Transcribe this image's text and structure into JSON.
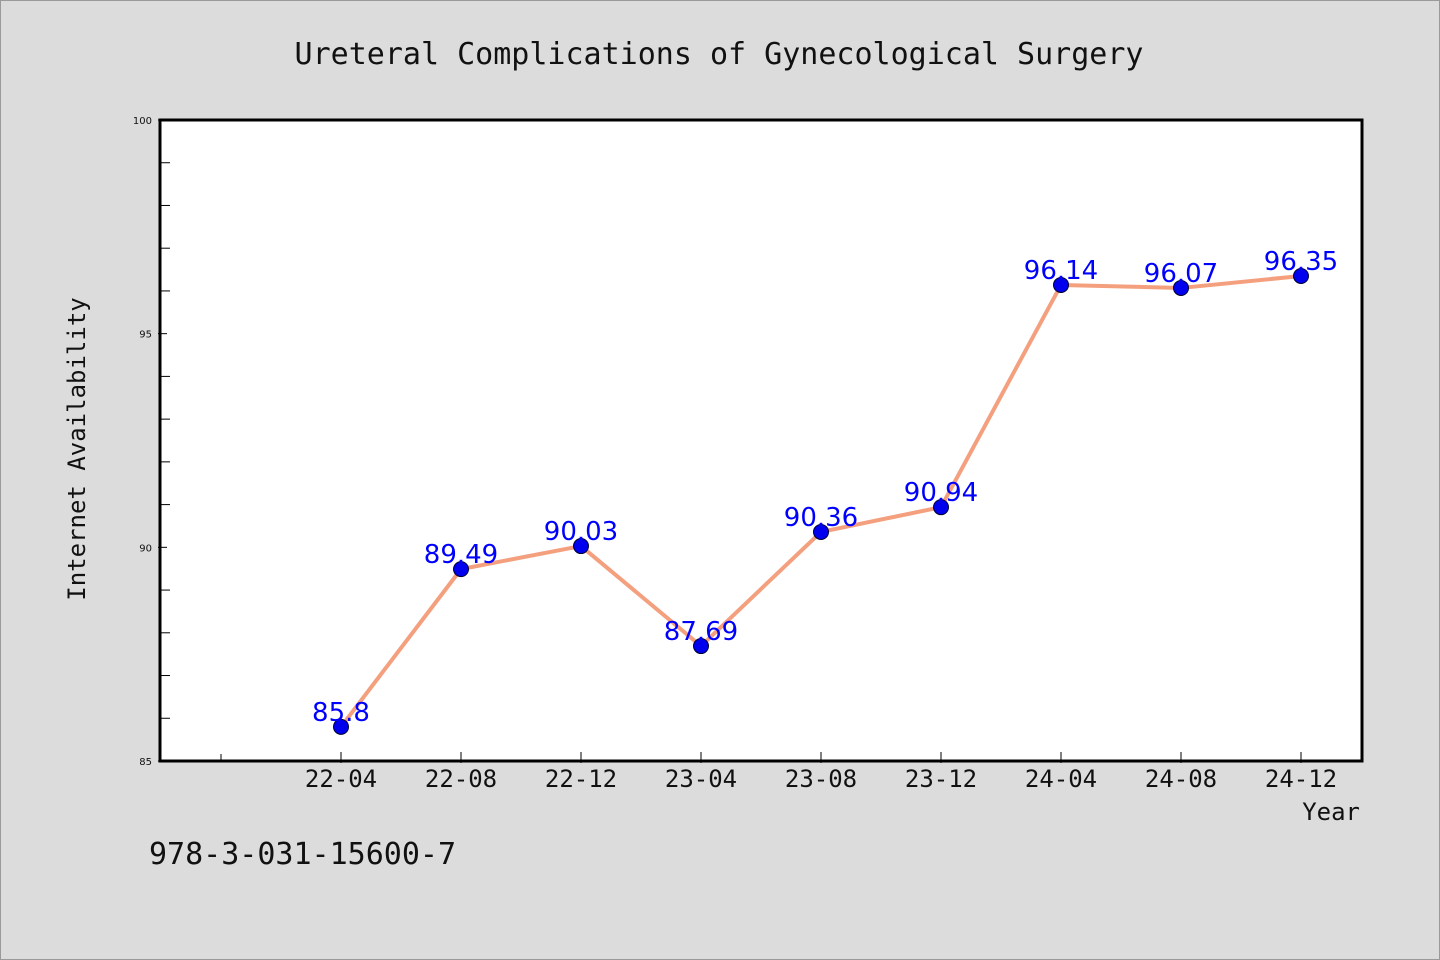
{
  "chart_data": {
    "type": "line",
    "title": "Ureteral Complications of Gynecological Surgery",
    "xlabel": "Year",
    "ylabel": "Internet Availability",
    "categories": [
      "22-04",
      "22-08",
      "22-12",
      "23-04",
      "23-08",
      "23-12",
      "24-04",
      "24-08",
      "24-12"
    ],
    "series": [
      {
        "values": [
          85.8,
          89.49,
          90.03,
          87.69,
          90.36,
          90.94,
          96.14,
          96.07,
          96.35
        ],
        "labels": [
          "85.8",
          "89.49",
          "90.03",
          "87.69",
          "90.36",
          "90.94",
          "96.14",
          "96.07",
          "96.35"
        ]
      }
    ],
    "ylim": [
      85,
      100
    ],
    "yticks": [
      "85",
      "90",
      "95",
      "100"
    ],
    "grid": false,
    "legend": "none",
    "colors": {
      "line": "#f4a07f",
      "marker": "#0000ee",
      "data_label": "#0000ff",
      "background": "#dcdcdc",
      "plot_area": "#ffffff"
    }
  },
  "annotation": "978-3-031-15600-7"
}
